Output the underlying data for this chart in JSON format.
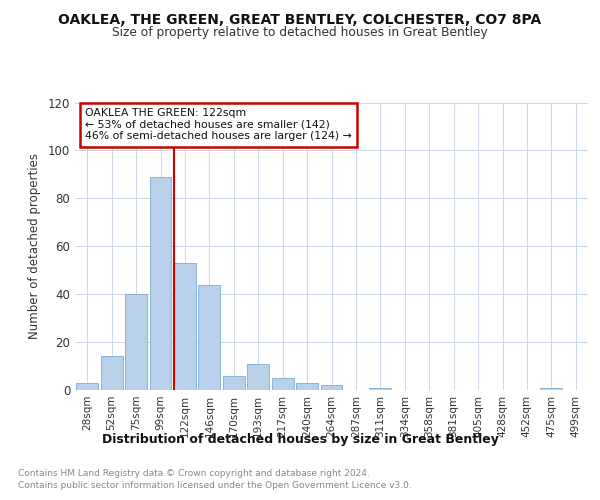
{
  "title1": "OAKLEA, THE GREEN, GREAT BENTLEY, COLCHESTER, CO7 8PA",
  "title2": "Size of property relative to detached houses in Great Bentley",
  "xlabel": "Distribution of detached houses by size in Great Bentley",
  "ylabel": "Number of detached properties",
  "categories": [
    "28sqm",
    "52sqm",
    "75sqm",
    "99sqm",
    "122sqm",
    "146sqm",
    "170sqm",
    "193sqm",
    "217sqm",
    "240sqm",
    "264sqm",
    "287sqm",
    "311sqm",
    "334sqm",
    "358sqm",
    "381sqm",
    "405sqm",
    "428sqm",
    "452sqm",
    "475sqm",
    "499sqm"
  ],
  "values": [
    3,
    14,
    40,
    89,
    53,
    44,
    6,
    11,
    5,
    3,
    2,
    0,
    1,
    0,
    0,
    0,
    0,
    0,
    0,
    1,
    0
  ],
  "bar_color": "#b8d0ea",
  "bar_edge_color": "#7aadd4",
  "vline_color": "#cc0000",
  "annotation_line1": "OAKLEA THE GREEN: 122sqm",
  "annotation_line2": "← 53% of detached houses are smaller (142)",
  "annotation_line3": "46% of semi-detached houses are larger (124) →",
  "annotation_box_color": "#cc0000",
  "annotation_box_fill": "#ffffff",
  "footnote1": "Contains HM Land Registry data © Crown copyright and database right 2024.",
  "footnote2": "Contains public sector information licensed under the Open Government Licence v3.0.",
  "bg_color": "#ffffff",
  "grid_color": "#ccd8ea",
  "ylim": [
    0,
    120
  ],
  "yticks": [
    0,
    20,
    40,
    60,
    80,
    100,
    120
  ]
}
